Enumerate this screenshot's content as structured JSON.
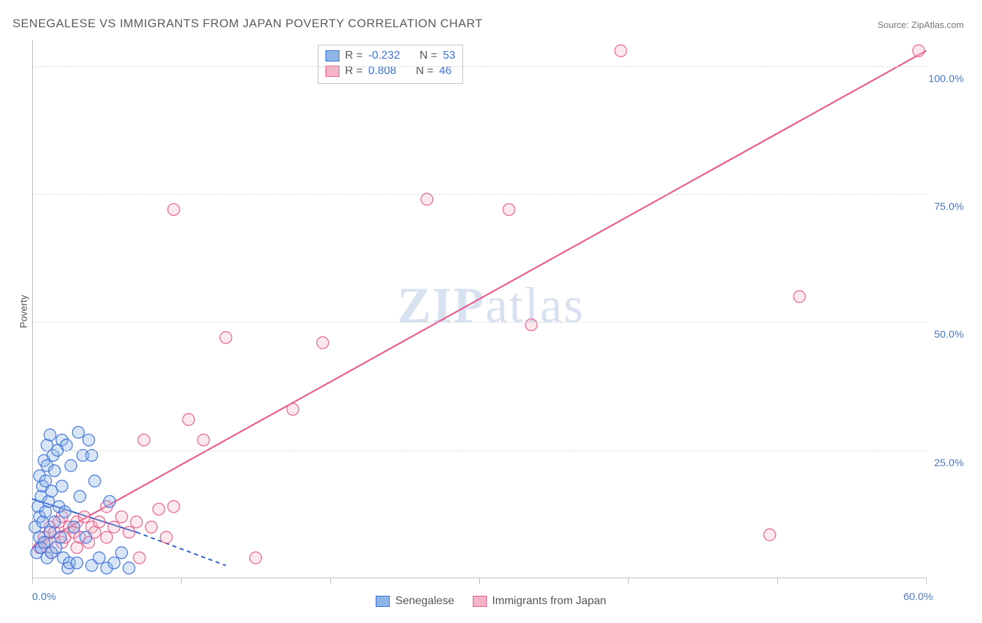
{
  "title": "SENEGALESE VS IMMIGRANTS FROM JAPAN POVERTY CORRELATION CHART",
  "source_prefix": "Source: ",
  "source": "ZipAtlas.com",
  "ylabel": "Poverty",
  "watermark_a": "ZIP",
  "watermark_b": "atlas",
  "chart": {
    "type": "scatter",
    "xlim": [
      0,
      60
    ],
    "ylim": [
      0,
      105
    ],
    "x_ticks": [
      0,
      10,
      20,
      30,
      40,
      50,
      60
    ],
    "x_tick_labels": {
      "0": "0.0%",
      "60": "60.0%"
    },
    "y_ticks": [
      25,
      50,
      75,
      100
    ],
    "y_tick_labels": {
      "25": "25.0%",
      "50": "50.0%",
      "75": "75.0%",
      "100": "100.0%"
    },
    "grid_color": "#d8d8d8",
    "background_color": "#ffffff",
    "axis_color": "#bbbbbb",
    "tick_font_color": "#4a7ac7",
    "label_font_color": "#555555",
    "title_font_color": "#5a5a5a",
    "title_fontsize": 17,
    "tick_fontsize": 15,
    "label_fontsize": 14,
    "marker_radius": 8.5,
    "marker_fill_opacity": 0.33,
    "series": [
      {
        "name": "Senegalese",
        "fill": "#8fb4e8",
        "stroke": "#3a6fd8",
        "R": "-0.232",
        "N": "53",
        "trend": {
          "x1": 0,
          "y1": 15.5,
          "x2": 7,
          "y2": 9.0,
          "extrap_x2": 13,
          "extrap_y2": 2.5,
          "color": "#2a5fc8",
          "width": 2,
          "dash_extrap": "6,5"
        },
        "points": [
          [
            0.2,
            10
          ],
          [
            0.3,
            5
          ],
          [
            0.4,
            14
          ],
          [
            0.5,
            8
          ],
          [
            0.5,
            20
          ],
          [
            0.5,
            12
          ],
          [
            0.6,
            16
          ],
          [
            0.6,
            6
          ],
          [
            0.7,
            18
          ],
          [
            0.7,
            11
          ],
          [
            0.8,
            23
          ],
          [
            0.8,
            7
          ],
          [
            0.9,
            19
          ],
          [
            0.9,
            13
          ],
          [
            1.0,
            22
          ],
          [
            1.0,
            4
          ],
          [
            1.0,
            26
          ],
          [
            1.1,
            15
          ],
          [
            1.2,
            9
          ],
          [
            1.2,
            28
          ],
          [
            1.3,
            17
          ],
          [
            1.3,
            5
          ],
          [
            1.4,
            24
          ],
          [
            1.5,
            11
          ],
          [
            1.5,
            21
          ],
          [
            1.6,
            6
          ],
          [
            1.7,
            25
          ],
          [
            1.8,
            14
          ],
          [
            1.9,
            8
          ],
          [
            2.0,
            27
          ],
          [
            2.0,
            18
          ],
          [
            2.1,
            4
          ],
          [
            2.2,
            13
          ],
          [
            2.3,
            26
          ],
          [
            2.4,
            2
          ],
          [
            2.5,
            3
          ],
          [
            2.6,
            22
          ],
          [
            2.8,
            10
          ],
          [
            3.0,
            3
          ],
          [
            3.1,
            28.5
          ],
          [
            3.2,
            16
          ],
          [
            3.4,
            24
          ],
          [
            3.6,
            8
          ],
          [
            3.8,
            27
          ],
          [
            4.0,
            2.5
          ],
          [
            4.0,
            24
          ],
          [
            4.2,
            19
          ],
          [
            4.5,
            4
          ],
          [
            5.0,
            2
          ],
          [
            5.2,
            15
          ],
          [
            5.5,
            3
          ],
          [
            6.0,
            5
          ],
          [
            6.5,
            2
          ]
        ]
      },
      {
        "name": "Immigrants from Japan",
        "fill": "#f4b6c6",
        "stroke": "#e75a8a",
        "R": "0.808",
        "N": "46",
        "trend": {
          "x1": 0,
          "y1": 6,
          "x2": 60,
          "y2": 103,
          "color": "#e75a8a",
          "width": 2.2
        },
        "points": [
          [
            0.5,
            6
          ],
          [
            0.8,
            8
          ],
          [
            1.0,
            7
          ],
          [
            1.2,
            10
          ],
          [
            1.3,
            5
          ],
          [
            1.5,
            9
          ],
          [
            1.8,
            11
          ],
          [
            2.0,
            7
          ],
          [
            2.0,
            12
          ],
          [
            2.2,
            8
          ],
          [
            2.5,
            10
          ],
          [
            2.8,
            9
          ],
          [
            3.0,
            11
          ],
          [
            3.0,
            6
          ],
          [
            3.2,
            8
          ],
          [
            3.5,
            12
          ],
          [
            3.8,
            7
          ],
          [
            4.0,
            10
          ],
          [
            4.2,
            9
          ],
          [
            4.5,
            11
          ],
          [
            5.0,
            8
          ],
          [
            5.0,
            14
          ],
          [
            5.5,
            10
          ],
          [
            6.0,
            12
          ],
          [
            6.5,
            9
          ],
          [
            7.0,
            11
          ],
          [
            7.2,
            4
          ],
          [
            7.5,
            27
          ],
          [
            8.0,
            10
          ],
          [
            8.5,
            13.5
          ],
          [
            9.0,
            8
          ],
          [
            9.5,
            14
          ],
          [
            10.5,
            31
          ],
          [
            11.5,
            27
          ],
          [
            13.0,
            47
          ],
          [
            15.0,
            4
          ],
          [
            17.5,
            33
          ],
          [
            19.5,
            46
          ],
          [
            9.5,
            72
          ],
          [
            26.5,
            74
          ],
          [
            32.0,
            72
          ],
          [
            33.5,
            49.5
          ],
          [
            39.5,
            103
          ],
          [
            49.5,
            8.5
          ],
          [
            51.5,
            55
          ],
          [
            59.5,
            103
          ]
        ]
      }
    ]
  },
  "legend_top": {
    "R_label": "R =",
    "N_label": "N ="
  },
  "legend_bottom": [
    {
      "label": "Senegalese",
      "fill": "#8fb4e8",
      "stroke": "#3a6fd8"
    },
    {
      "label": "Immigrants from Japan",
      "fill": "#f4b6c6",
      "stroke": "#e75a8a"
    }
  ]
}
